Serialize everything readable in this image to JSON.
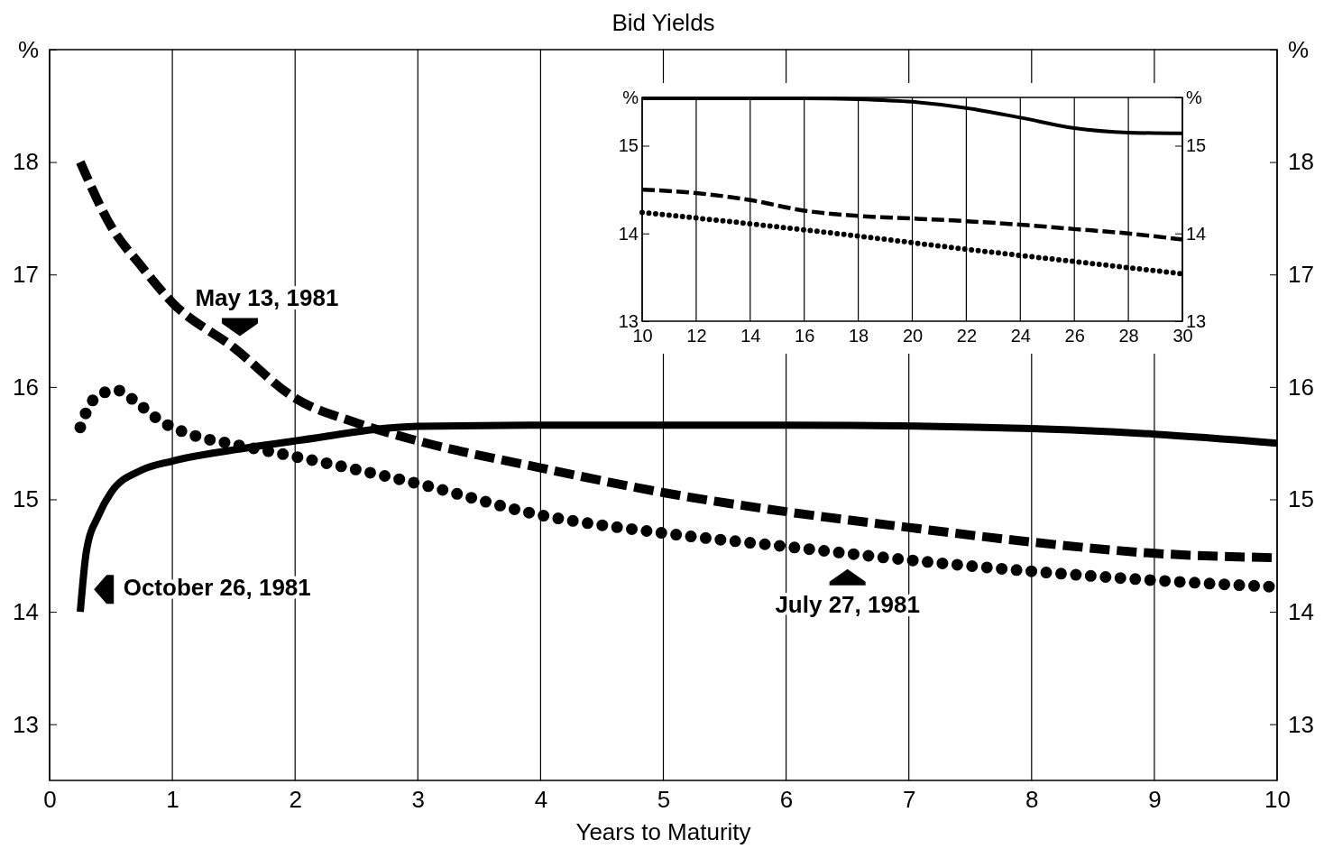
{
  "chart_data": [
    {
      "type": "line",
      "title": "Bid Yields",
      "xlabel": "Years to Maturity",
      "xlim": [
        0,
        10
      ],
      "xticks": [
        0,
        1,
        2,
        3,
        4,
        5,
        6,
        7,
        8,
        9,
        10
      ],
      "ylim": [
        12.5,
        19
      ],
      "yticks": [
        13,
        14,
        15,
        16,
        17,
        18,
        {
          "value": 19,
          "label": "%"
        }
      ],
      "y2lim": [
        12.5,
        19
      ],
      "y2ticks": [
        13,
        14,
        15,
        16,
        17,
        18,
        {
          "value": 19,
          "label": "%"
        }
      ],
      "grid": "x",
      "series": [
        {
          "name": "May 13, 1981",
          "color": "#000000",
          "line_style": "dashed",
          "x": [
            0.25,
            0.5,
            0.75,
            1,
            1.5,
            2,
            2.5,
            3,
            4,
            5,
            6,
            7,
            8,
            9,
            10
          ],
          "values": [
            18.0,
            17.43,
            17.07,
            16.75,
            16.35,
            15.9,
            15.68,
            15.52,
            15.28,
            15.06,
            14.89,
            14.75,
            14.62,
            14.52,
            14.48
          ]
        },
        {
          "name": "July 27, 1981",
          "color": "#000000",
          "line_style": "dotted",
          "x": [
            0.25,
            0.3,
            0.4,
            0.55,
            0.7,
            0.9,
            1.2,
            1.5,
            2,
            3,
            4,
            5,
            6,
            7,
            8,
            9,
            10
          ],
          "values": [
            15.64,
            15.78,
            15.93,
            15.97,
            15.87,
            15.7,
            15.56,
            15.49,
            15.38,
            15.14,
            14.86,
            14.7,
            14.58,
            14.46,
            14.36,
            14.28,
            14.22
          ]
        },
        {
          "name": "October 26, 1981",
          "color": "#000000",
          "line_style": "solid",
          "x": [
            0.25,
            0.3,
            0.4,
            0.5,
            0.75,
            1,
            1.5,
            2,
            3,
            4,
            6,
            8,
            9,
            10
          ],
          "values": [
            14.0,
            14.54,
            14.86,
            15.06,
            15.26,
            15.34,
            15.44,
            15.52,
            15.65,
            15.66,
            15.66,
            15.63,
            15.58,
            15.5
          ]
        }
      ]
    },
    {
      "type": "line",
      "xlim": [
        10,
        30
      ],
      "xticks": [
        10,
        12,
        14,
        16,
        18,
        20,
        22,
        24,
        26,
        28,
        30
      ],
      "ylim": [
        13,
        15.55
      ],
      "yticks": [
        13,
        14,
        15,
        {
          "value": 15.55,
          "label": "%"
        }
      ],
      "y2lim": [
        13,
        15.55
      ],
      "y2ticks": [
        13,
        14,
        15,
        {
          "value": 15.55,
          "label": "%"
        }
      ],
      "grid": "x",
      "series": [
        {
          "color": "#000000",
          "line_style": "solid",
          "x": [
            10,
            16,
            18,
            20,
            22,
            24,
            26,
            28,
            30
          ],
          "values": [
            15.54,
            15.54,
            15.53,
            15.5,
            15.43,
            15.32,
            15.2,
            15.15,
            15.14
          ]
        },
        {
          "color": "#000000",
          "line_style": "dashed",
          "x": [
            10,
            12,
            14,
            16,
            18,
            20,
            22,
            24,
            26,
            28,
            30
          ],
          "values": [
            14.5,
            14.46,
            14.38,
            14.26,
            14.2,
            14.17,
            14.14,
            14.1,
            14.05,
            14.0,
            13.93
          ]
        },
        {
          "color": "#000000",
          "line_style": "dotted",
          "x": [
            10,
            14,
            18,
            22,
            26,
            30
          ],
          "values": [
            14.24,
            14.11,
            13.97,
            13.82,
            13.68,
            13.54
          ]
        }
      ]
    }
  ]
}
